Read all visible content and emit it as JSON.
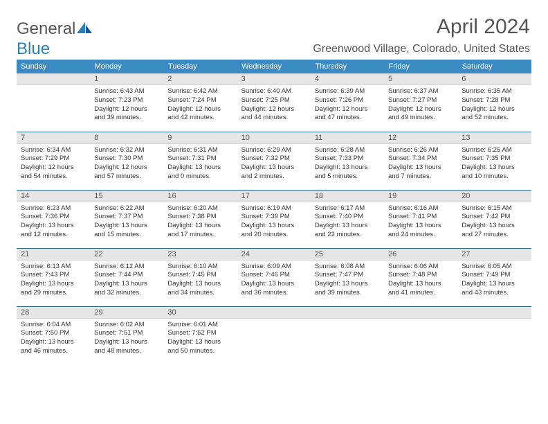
{
  "logo": {
    "text1": "General",
    "text2": "Blue"
  },
  "title": "April 2024",
  "location": "Greenwood Village, Colorado, United States",
  "colors": {
    "header_bg": "#3b8ac4",
    "header_fg": "#ffffff",
    "day_header_bg": "#e6e6e6",
    "border": "#2a6a9a",
    "text": "#333333",
    "logo_blue": "#2a7fba"
  },
  "weekdays": [
    "Sunday",
    "Monday",
    "Tuesday",
    "Wednesday",
    "Thursday",
    "Friday",
    "Saturday"
  ],
  "grid": [
    [
      {
        "n": "",
        "lines": []
      },
      {
        "n": "1",
        "lines": [
          "Sunrise: 6:43 AM",
          "Sunset: 7:23 PM",
          "Daylight: 12 hours",
          "and 39 minutes."
        ]
      },
      {
        "n": "2",
        "lines": [
          "Sunrise: 6:42 AM",
          "Sunset: 7:24 PM",
          "Daylight: 12 hours",
          "and 42 minutes."
        ]
      },
      {
        "n": "3",
        "lines": [
          "Sunrise: 6:40 AM",
          "Sunset: 7:25 PM",
          "Daylight: 12 hours",
          "and 44 minutes."
        ]
      },
      {
        "n": "4",
        "lines": [
          "Sunrise: 6:39 AM",
          "Sunset: 7:26 PM",
          "Daylight: 12 hours",
          "and 47 minutes."
        ]
      },
      {
        "n": "5",
        "lines": [
          "Sunrise: 6:37 AM",
          "Sunset: 7:27 PM",
          "Daylight: 12 hours",
          "and 49 minutes."
        ]
      },
      {
        "n": "6",
        "lines": [
          "Sunrise: 6:35 AM",
          "Sunset: 7:28 PM",
          "Daylight: 12 hours",
          "and 52 minutes."
        ]
      }
    ],
    [
      {
        "n": "7",
        "lines": [
          "Sunrise: 6:34 AM",
          "Sunset: 7:29 PM",
          "Daylight: 12 hours",
          "and 54 minutes."
        ]
      },
      {
        "n": "8",
        "lines": [
          "Sunrise: 6:32 AM",
          "Sunset: 7:30 PM",
          "Daylight: 12 hours",
          "and 57 minutes."
        ]
      },
      {
        "n": "9",
        "lines": [
          "Sunrise: 6:31 AM",
          "Sunset: 7:31 PM",
          "Daylight: 13 hours",
          "and 0 minutes."
        ]
      },
      {
        "n": "10",
        "lines": [
          "Sunrise: 6:29 AM",
          "Sunset: 7:32 PM",
          "Daylight: 13 hours",
          "and 2 minutes."
        ]
      },
      {
        "n": "11",
        "lines": [
          "Sunrise: 6:28 AM",
          "Sunset: 7:33 PM",
          "Daylight: 13 hours",
          "and 5 minutes."
        ]
      },
      {
        "n": "12",
        "lines": [
          "Sunrise: 6:26 AM",
          "Sunset: 7:34 PM",
          "Daylight: 13 hours",
          "and 7 minutes."
        ]
      },
      {
        "n": "13",
        "lines": [
          "Sunrise: 6:25 AM",
          "Sunset: 7:35 PM",
          "Daylight: 13 hours",
          "and 10 minutes."
        ]
      }
    ],
    [
      {
        "n": "14",
        "lines": [
          "Sunrise: 6:23 AM",
          "Sunset: 7:36 PM",
          "Daylight: 13 hours",
          "and 12 minutes."
        ]
      },
      {
        "n": "15",
        "lines": [
          "Sunrise: 6:22 AM",
          "Sunset: 7:37 PM",
          "Daylight: 13 hours",
          "and 15 minutes."
        ]
      },
      {
        "n": "16",
        "lines": [
          "Sunrise: 6:20 AM",
          "Sunset: 7:38 PM",
          "Daylight: 13 hours",
          "and 17 minutes."
        ]
      },
      {
        "n": "17",
        "lines": [
          "Sunrise: 6:19 AM",
          "Sunset: 7:39 PM",
          "Daylight: 13 hours",
          "and 20 minutes."
        ]
      },
      {
        "n": "18",
        "lines": [
          "Sunrise: 6:17 AM",
          "Sunset: 7:40 PM",
          "Daylight: 13 hours",
          "and 22 minutes."
        ]
      },
      {
        "n": "19",
        "lines": [
          "Sunrise: 6:16 AM",
          "Sunset: 7:41 PM",
          "Daylight: 13 hours",
          "and 24 minutes."
        ]
      },
      {
        "n": "20",
        "lines": [
          "Sunrise: 6:15 AM",
          "Sunset: 7:42 PM",
          "Daylight: 13 hours",
          "and 27 minutes."
        ]
      }
    ],
    [
      {
        "n": "21",
        "lines": [
          "Sunrise: 6:13 AM",
          "Sunset: 7:43 PM",
          "Daylight: 13 hours",
          "and 29 minutes."
        ]
      },
      {
        "n": "22",
        "lines": [
          "Sunrise: 6:12 AM",
          "Sunset: 7:44 PM",
          "Daylight: 13 hours",
          "and 32 minutes."
        ]
      },
      {
        "n": "23",
        "lines": [
          "Sunrise: 6:10 AM",
          "Sunset: 7:45 PM",
          "Daylight: 13 hours",
          "and 34 minutes."
        ]
      },
      {
        "n": "24",
        "lines": [
          "Sunrise: 6:09 AM",
          "Sunset: 7:46 PM",
          "Daylight: 13 hours",
          "and 36 minutes."
        ]
      },
      {
        "n": "25",
        "lines": [
          "Sunrise: 6:08 AM",
          "Sunset: 7:47 PM",
          "Daylight: 13 hours",
          "and 39 minutes."
        ]
      },
      {
        "n": "26",
        "lines": [
          "Sunrise: 6:06 AM",
          "Sunset: 7:48 PM",
          "Daylight: 13 hours",
          "and 41 minutes."
        ]
      },
      {
        "n": "27",
        "lines": [
          "Sunrise: 6:05 AM",
          "Sunset: 7:49 PM",
          "Daylight: 13 hours",
          "and 43 minutes."
        ]
      }
    ],
    [
      {
        "n": "28",
        "lines": [
          "Sunrise: 6:04 AM",
          "Sunset: 7:50 PM",
          "Daylight: 13 hours",
          "and 46 minutes."
        ]
      },
      {
        "n": "29",
        "lines": [
          "Sunrise: 6:02 AM",
          "Sunset: 7:51 PM",
          "Daylight: 13 hours",
          "and 48 minutes."
        ]
      },
      {
        "n": "30",
        "lines": [
          "Sunrise: 6:01 AM",
          "Sunset: 7:52 PM",
          "Daylight: 13 hours",
          "and 50 minutes."
        ]
      },
      {
        "n": "",
        "lines": []
      },
      {
        "n": "",
        "lines": []
      },
      {
        "n": "",
        "lines": []
      },
      {
        "n": "",
        "lines": []
      }
    ]
  ]
}
